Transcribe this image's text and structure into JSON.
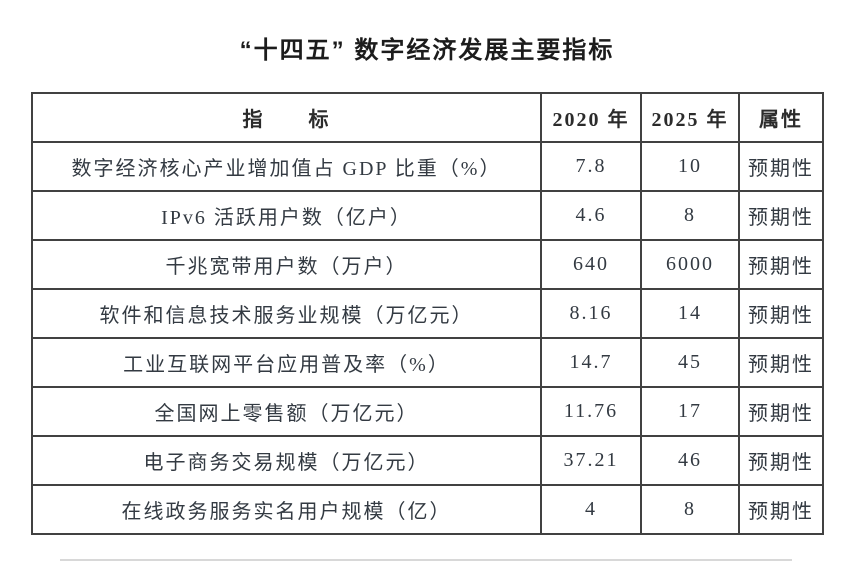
{
  "title": "“十四五” 数字经济发展主要指标",
  "table": {
    "headers": {
      "indicator": "指　　标",
      "y2020": "2020 年",
      "y2025": "2025 年",
      "attribute": "属性"
    },
    "rows": [
      {
        "indicator": "数字经济核心产业增加值占 GDP 比重（%）",
        "y2020": "7.8",
        "y2025": "10",
        "attribute": "预期性"
      },
      {
        "indicator": "IPv6 活跃用户数（亿户）",
        "y2020": "4.6",
        "y2025": "8",
        "attribute": "预期性"
      },
      {
        "indicator": "千兆宽带用户数（万户）",
        "y2020": "640",
        "y2025": "6000",
        "attribute": "预期性"
      },
      {
        "indicator": "软件和信息技术服务业规模（万亿元）",
        "y2020": "8.16",
        "y2025": "14",
        "attribute": "预期性"
      },
      {
        "indicator": "工业互联网平台应用普及率（%）",
        "y2020": "14.7",
        "y2025": "45",
        "attribute": "预期性"
      },
      {
        "indicator": "全国网上零售额（万亿元）",
        "y2020": "11.76",
        "y2025": "17",
        "attribute": "预期性"
      },
      {
        "indicator": "电子商务交易规模（万亿元）",
        "y2020": "37.21",
        "y2025": "46",
        "attribute": "预期性"
      },
      {
        "indicator": "在线政务服务实名用户规模（亿）",
        "y2020": "4",
        "y2025": "8",
        "attribute": "预期性"
      }
    ]
  },
  "colors": {
    "background": "#ffffff",
    "text": "#333a42",
    "border": "#414141",
    "title_text": "#1c1c1c"
  }
}
